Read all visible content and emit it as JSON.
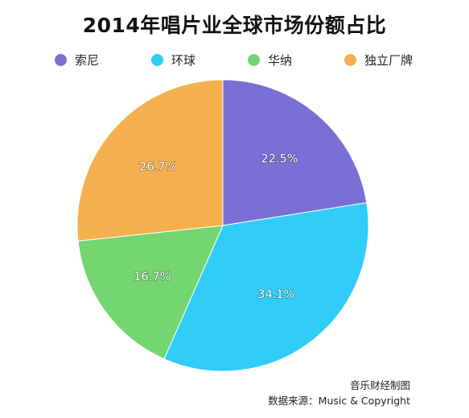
{
  "colors": {
    "sony": "#7B6FD6",
    "universal": "#30CCF7",
    "warner": "#73D670",
    "indie": "#F7B04F"
  },
  "chart_data": {
    "type": "pie",
    "title": "2014年唱片业全球市场份额占比",
    "slices": [
      {
        "name": "索尼",
        "value": 22.5,
        "label": "22.5%",
        "color": "#7B6FD6"
      },
      {
        "name": "环球",
        "value": 34.1,
        "label": "34.1%",
        "color": "#30CCF7"
      },
      {
        "name": "华纳",
        "value": 16.7,
        "label": "16.7%",
        "color": "#73D670"
      },
      {
        "name": "独立厂牌",
        "value": 26.7,
        "label": "26.7%",
        "color": "#F7B04F"
      }
    ],
    "legend_position": "top"
  },
  "footer": {
    "credit": "音乐财经制图",
    "source": "数据来源：Music & Copyright"
  }
}
